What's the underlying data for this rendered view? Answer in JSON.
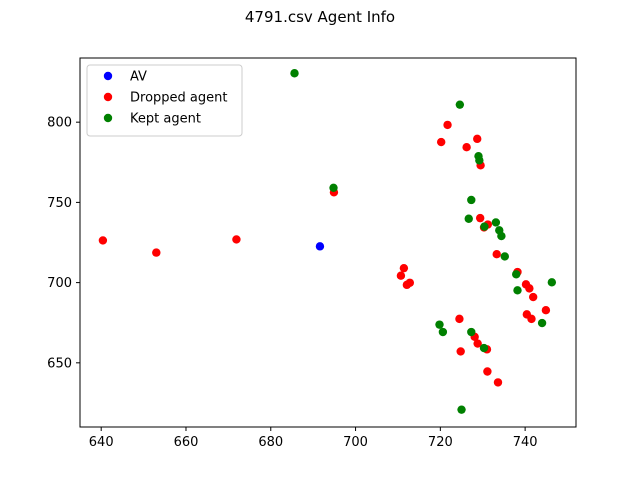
{
  "chart_data": {
    "type": "scatter",
    "title": "4791.csv Agent Info",
    "xlabel": "",
    "ylabel": "",
    "xlim": [
      635.0,
      752.0
    ],
    "ylim": [
      610.0,
      840.0
    ],
    "xticks": [
      640,
      660,
      680,
      700,
      720,
      740
    ],
    "yticks": [
      650,
      700,
      750,
      800
    ],
    "grid": false,
    "legend": {
      "position": "upper-left"
    },
    "series": [
      {
        "name": "AV",
        "color": "#0000ff",
        "points": [
          [
            691.6,
            722.6
          ]
        ]
      },
      {
        "name": "Dropped agent",
        "color": "#ff0000",
        "points": [
          [
            640.4,
            726.3
          ],
          [
            653.0,
            718.7
          ],
          [
            671.9,
            726.9
          ],
          [
            694.9,
            756.3
          ],
          [
            711.4,
            709.0
          ],
          [
            710.7,
            704.3
          ],
          [
            712.1,
            698.6
          ],
          [
            712.8,
            699.9
          ],
          [
            721.7,
            798.3
          ],
          [
            720.2,
            787.6
          ],
          [
            726.2,
            784.4
          ],
          [
            728.7,
            789.6
          ],
          [
            729.5,
            773.1
          ],
          [
            729.4,
            740.2
          ],
          [
            730.3,
            734.4
          ],
          [
            731.2,
            736.2
          ],
          [
            733.3,
            717.7
          ],
          [
            738.2,
            706.6
          ],
          [
            740.2,
            698.9
          ],
          [
            741.0,
            696.4
          ],
          [
            741.9,
            691.0
          ],
          [
            740.4,
            680.2
          ],
          [
            741.5,
            677.4
          ],
          [
            744.9,
            682.8
          ],
          [
            724.5,
            677.4
          ],
          [
            728.1,
            666.2
          ],
          [
            728.8,
            662.0
          ],
          [
            731.0,
            658.4
          ],
          [
            724.8,
            657.1
          ],
          [
            731.1,
            644.6
          ],
          [
            733.6,
            637.8
          ]
        ]
      },
      {
        "name": "Kept agent",
        "color": "#008000",
        "points": [
          [
            685.6,
            830.5
          ],
          [
            694.8,
            759.1
          ],
          [
            724.6,
            810.9
          ],
          [
            729.0,
            778.8
          ],
          [
            729.2,
            776.2
          ],
          [
            727.3,
            751.5
          ],
          [
            726.7,
            739.8
          ],
          [
            730.4,
            734.9
          ],
          [
            733.1,
            737.5
          ],
          [
            733.9,
            732.6
          ],
          [
            734.4,
            729.0
          ],
          [
            735.2,
            716.3
          ],
          [
            737.9,
            705.2
          ],
          [
            738.2,
            695.2
          ],
          [
            746.3,
            700.2
          ],
          [
            744.0,
            674.8
          ],
          [
            719.8,
            673.8
          ],
          [
            720.6,
            669.2
          ],
          [
            727.3,
            669.2
          ],
          [
            730.3,
            659.2
          ],
          [
            725.0,
            620.8
          ]
        ]
      }
    ]
  }
}
